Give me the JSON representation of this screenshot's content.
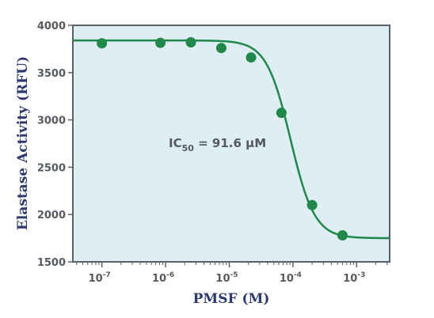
{
  "colors": {
    "plot_bg": "#deeef3",
    "frame": "#58606a",
    "series": "#21874a",
    "tick_text": "#555a60",
    "axis_title": "#2e3a6e"
  },
  "chart_data": {
    "type": "scatter",
    "xlabel": "PMSF (M)",
    "ylabel": "Elastase Activity (RFU)",
    "xscale": "log",
    "xlim": [
      3.5e-08,
      0.0033
    ],
    "ylim": [
      1500,
      4000
    ],
    "x_ticks": [
      {
        "base": "10",
        "exp": "-7",
        "value": 1e-07
      },
      {
        "base": "10",
        "exp": "-6",
        "value": 1e-06
      },
      {
        "base": "10",
        "exp": "-5",
        "value": 1e-05
      },
      {
        "base": "10",
        "exp": "-4",
        "value": 0.0001
      },
      {
        "base": "10",
        "exp": "-3",
        "value": 0.001
      }
    ],
    "y_ticks": [
      "4000",
      "3500",
      "3000",
      "2500",
      "2000",
      "1500"
    ],
    "points": [
      {
        "x": 1e-07,
        "y": 3810
      },
      {
        "x": 8.3e-07,
        "y": 3815
      },
      {
        "x": 2.5e-06,
        "y": 3820
      },
      {
        "x": 7.5e-06,
        "y": 3760
      },
      {
        "x": 2.2e-05,
        "y": 3660
      },
      {
        "x": 6.6e-05,
        "y": 3075
      },
      {
        "x": 0.0002,
        "y": 2100
      },
      {
        "x": 0.0006,
        "y": 1780
      }
    ],
    "fit": {
      "top": 3840,
      "bottom": 1750,
      "ic50": 9.16e-05,
      "hill": 2.3
    },
    "annotation": {
      "main": "IC",
      "sub": "50",
      "rest": " = 91.6 µM"
    },
    "grid": false,
    "legend": "none"
  }
}
